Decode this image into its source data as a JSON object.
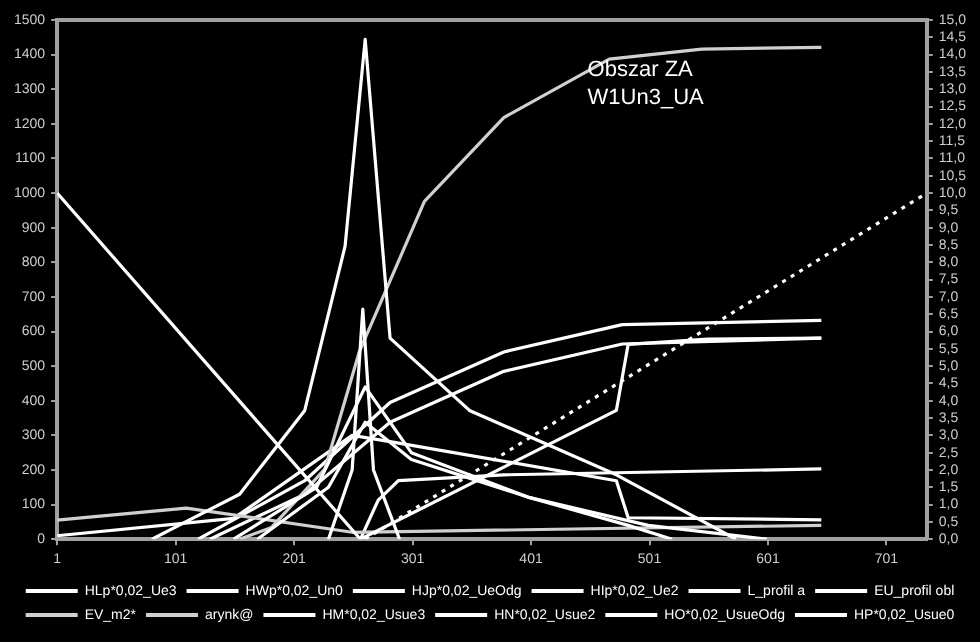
{
  "chart_data": {
    "type": "line",
    "annotations": [
      "Obszar ZA",
      "W1Un3_UA"
    ],
    "xlim": [
      1,
      735
    ],
    "xticks": [
      1,
      101,
      201,
      301,
      401,
      501,
      601,
      701
    ],
    "ylim": [
      0,
      1500
    ],
    "yticks": [
      0,
      100,
      200,
      300,
      400,
      500,
      600,
      700,
      800,
      900,
      1000,
      1100,
      1200,
      1300,
      1400,
      1500
    ],
    "y2lim": [
      0,
      15
    ],
    "y2ticks": [
      {
        "value": 0,
        "label": "0,0"
      },
      {
        "value": 0.5,
        "label": "0,5"
      },
      {
        "value": 1,
        "label": "1,0"
      },
      {
        "value": 1.5,
        "label": "1,5"
      },
      {
        "value": 2,
        "label": "2,0"
      },
      {
        "value": 2.5,
        "label": "2,5"
      },
      {
        "value": 3,
        "label": "3,0"
      },
      {
        "value": 3.5,
        "label": "3,5"
      },
      {
        "value": 4,
        "label": "4,0"
      },
      {
        "value": 4.5,
        "label": "4,5"
      },
      {
        "value": 5,
        "label": "5,0"
      },
      {
        "value": 5.5,
        "label": "5,5"
      },
      {
        "value": 6,
        "label": "6,0"
      },
      {
        "value": 6.5,
        "label": "6,5"
      },
      {
        "value": 7,
        "label": "7,0"
      },
      {
        "value": 7.5,
        "label": "7,5"
      },
      {
        "value": 8,
        "label": "8,0"
      },
      {
        "value": 8.5,
        "label": "8,5"
      },
      {
        "value": 9,
        "label": "9,0"
      },
      {
        "value": 9.5,
        "label": "9,5"
      },
      {
        "value": 10,
        "label": "10,0"
      },
      {
        "value": 10.5,
        "label": "10,5"
      },
      {
        "value": 11,
        "label": "11,0"
      },
      {
        "value": 11.5,
        "label": "11,5"
      },
      {
        "value": 12,
        "label": "12,0"
      },
      {
        "value": 12.5,
        "label": "12,5"
      },
      {
        "value": 13,
        "label": "13,0"
      },
      {
        "value": 13.5,
        "label": "13,5"
      },
      {
        "value": 14,
        "label": "14,0"
      },
      {
        "value": 14.5,
        "label": "14,5"
      },
      {
        "value": 15,
        "label": "15,0"
      }
    ],
    "grid": false,
    "legend": "bottom",
    "marker": "none",
    "line_style": "solid",
    "series": [
      {
        "name": "HLp*0,02_Ue3",
        "color": "#ffffff",
        "x": [
          230,
          250,
          259,
          268,
          290
        ],
        "values": [
          0,
          200,
          665,
          200,
          0
        ]
      },
      {
        "name": "HWp*0,02_Un0",
        "color": "#ffffff",
        "x": [
          150,
          220,
          261,
          300,
          400,
          500,
          600
        ],
        "values": [
          0,
          150,
          440,
          250,
          120,
          40,
          0
        ]
      },
      {
        "name": "HJp*0,02_UeOdg",
        "color": "#ffffff",
        "x": [
          170,
          230,
          261,
          300,
          400,
          483,
          520
        ],
        "values": [
          0,
          150,
          338,
          230,
          120,
          40,
          0
        ]
      },
      {
        "name": "HIp*0,02_Ue2",
        "color": "#ffffff",
        "x": [
          81,
          155,
          210,
          244,
          261,
          282,
          349,
          473,
          574
        ],
        "values": [
          0,
          130,
          372,
          846,
          1444,
          581,
          372,
          186,
          0
        ]
      },
      {
        "name": "L_profil a",
        "color": "#ffffff",
        "x": [
          1,
          257,
          473,
          483,
          550,
          646
        ],
        "values": [
          1000,
          0,
          372,
          563,
          578,
          581
        ]
      },
      {
        "name": "EU_profil obl",
        "color": "#ffffff",
        "axis": "y2",
        "line_style": "dotted",
        "x": [
          261,
          735
        ],
        "values": [
          0,
          10
        ]
      },
      {
        "name": "EV_m2*",
        "color": "#d0d0d0",
        "x": [
          155,
          182,
          227,
          256,
          311,
          378,
          467,
          545,
          646
        ],
        "values": [
          0,
          34,
          203,
          541,
          976,
          1218,
          1387,
          1416,
          1421
        ]
      },
      {
        "name": "arynk@",
        "color": "#d0d0d0",
        "x": [
          1,
          110,
          250,
          646
        ],
        "values": [
          55,
          90,
          20,
          40
        ]
      },
      {
        "name": "HM*0,02_Usue3",
        "color": "#ffffff",
        "x": [
          120,
          210,
          282,
          378,
          478,
          646
        ],
        "values": [
          0,
          169,
          395,
          541,
          620,
          632
        ]
      },
      {
        "name": "HN*0,02_Usue2",
        "color": "#ffffff",
        "x": [
          130,
          210,
          282,
          378,
          478,
          646
        ],
        "values": [
          0,
          130,
          338,
          485,
          564,
          581
        ]
      },
      {
        "name": "HO*0,02_UsueOdg",
        "color": "#ffffff",
        "x": [
          257,
          272,
          289,
          378,
          646
        ],
        "values": [
          0,
          113,
          169,
          186,
          203
        ]
      },
      {
        "name": "HP*0,02_Usue0",
        "color": "#ffffff",
        "x": [
          1,
          150,
          250,
          282,
          473,
          483,
          646
        ],
        "values": [
          10,
          60,
          300,
          282,
          169,
          62,
          56
        ]
      }
    ]
  }
}
